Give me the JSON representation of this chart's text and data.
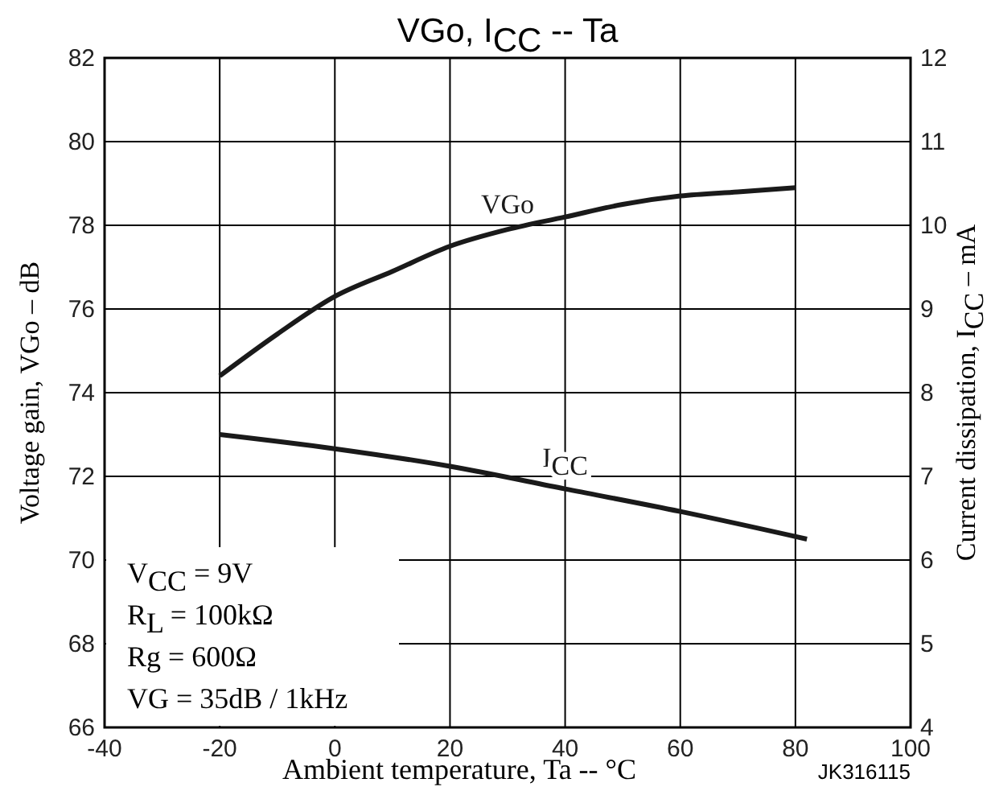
{
  "chart_data": {
    "type": "line",
    "title": "VGo, I$_{CC}$ -- Ta",
    "xlabel": "Ambient temperature, Ta -- °C",
    "ylabel": "Voltage gain, VGo – dB",
    "y2label": "Current dissipation, I$_{CC}$ – mA",
    "x": [
      -20,
      -10,
      0,
      10,
      20,
      30,
      40,
      50,
      60,
      70,
      80
    ],
    "series": [
      {
        "name": "VGo",
        "color": "#1a1a1a",
        "values": [
          74.4,
          75.4,
          76.3,
          76.9,
          77.5,
          77.9,
          78.2,
          78.5,
          78.7,
          78.8,
          78.9
        ]
      },
      {
        "name": "I$_{CC}$",
        "color": "#1a1a1a",
        "axis": "y2",
        "x": [
          -20,
          0,
          20,
          40,
          60,
          82
        ],
        "values": [
          7.5,
          7.33,
          7.12,
          6.85,
          6.58,
          6.25
        ]
      }
    ],
    "xlim": [
      -40,
      100
    ],
    "xticks": [
      -40,
      -20,
      0,
      20,
      40,
      60,
      80,
      100
    ],
    "ylim": [
      66,
      82
    ],
    "yticks": [
      66,
      68,
      70,
      72,
      74,
      76,
      78,
      80,
      82
    ],
    "y2lim": [
      4,
      12
    ],
    "y2ticks": [
      4,
      5,
      6,
      7,
      8,
      9,
      10,
      11,
      12
    ],
    "grid": true,
    "marker": "none",
    "line_style": "solid",
    "annotations": [
      "V$_{CC}$ = 9V",
      "R$_{L}$ = 100kΩ",
      "Rg = 600Ω",
      "VG = 35dB / 1kHz",
      "JK316115"
    ]
  }
}
